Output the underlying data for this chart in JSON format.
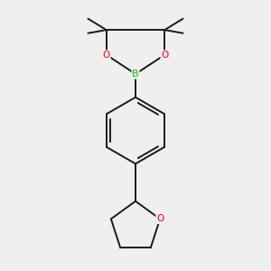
{
  "background_color": "#efefef",
  "bond_color": "#1a1a1a",
  "oxygen_color": "#ff0000",
  "boron_color": "#00cc00",
  "line_width": 1.4,
  "figsize": [
    3.0,
    3.0
  ],
  "dpi": 100,
  "xlim": [
    -0.6,
    0.6
  ],
  "ylim": [
    -0.75,
    0.85
  ]
}
